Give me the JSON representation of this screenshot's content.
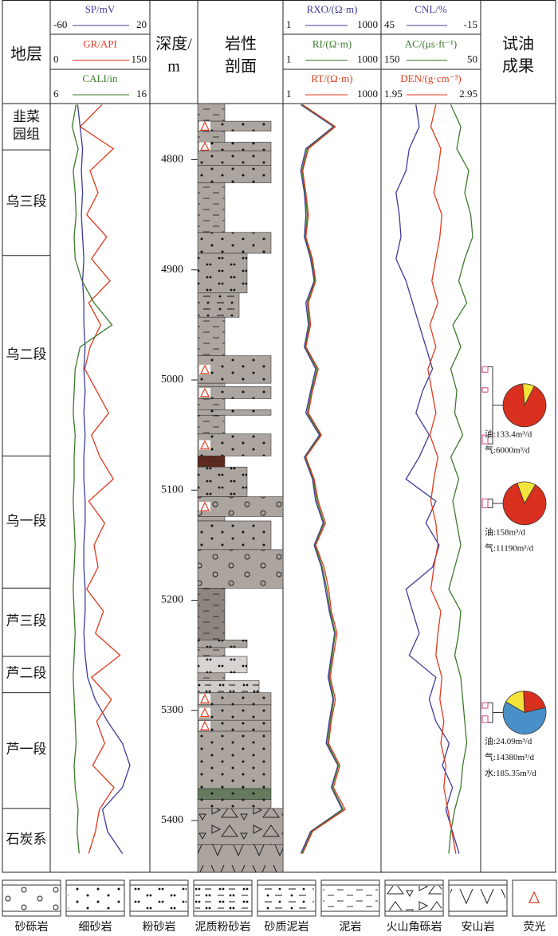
{
  "header": {
    "strata": "地层",
    "depth": [
      "深度/",
      "m"
    ],
    "lithology": [
      "岩性",
      "剖面"
    ],
    "test": [
      "试油",
      "成果"
    ]
  },
  "chart_data": {
    "type": "well-log",
    "ylim": [
      4749,
      5447
    ],
    "yticks": [
      4800,
      4900,
      5000,
      5100,
      5200,
      5300,
      5400
    ],
    "depths": [
      4750,
      4770,
      4790,
      4810,
      4830,
      4850,
      4870,
      4890,
      4910,
      4930,
      4950,
      4970,
      4990,
      5010,
      5030,
      5050,
      5070,
      5090,
      5110,
      5130,
      5150,
      5170,
      5190,
      5210,
      5230,
      5250,
      5270,
      5290,
      5310,
      5330,
      5350,
      5370,
      5390,
      5410,
      5430
    ],
    "tracks": [
      {
        "log": false,
        "curves": [
          {
            "name": "SP/mV",
            "color": "#3c3c9a",
            "xlim": [
              -60,
              20
            ],
            "values": [
              -38,
              -36,
              -34,
              -35,
              -34,
              -35,
              -34,
              -33,
              -34,
              -33,
              -33,
              -32,
              -33,
              -32,
              -33,
              -32,
              -33,
              -33,
              -32,
              -32,
              -33,
              -33,
              -32,
              -32,
              -33,
              -32,
              -30,
              -24,
              -14,
              -2,
              4,
              -2,
              -18,
              -14,
              -2
            ]
          },
          {
            "name": "GR/API",
            "color": "#e03a1e",
            "xlim": [
              0,
              150
            ],
            "values": [
              78,
              45,
              95,
              60,
              72,
              55,
              85,
              62,
              90,
              58,
              76,
              60,
              52,
              70,
              88,
              62,
              75,
              95,
              58,
              82,
              66,
              72,
              55,
              80,
              68,
              105,
              62,
              92,
              70,
              82,
              64,
              96,
              74,
              68,
              58
            ]
          },
          {
            "name": "CALI/in",
            "color": "#3b7a2a",
            "xlim": [
              6,
              16
            ],
            "values": [
              8.6,
              8.2,
              8.8,
              8.3,
              8.5,
              8.6,
              8.4,
              8.5,
              9.2,
              10.4,
              12.2,
              9.0,
              8.5,
              8.4,
              8.3,
              8.5,
              8.4,
              8.4,
              8.3,
              8.4,
              8.5,
              8.4,
              8.3,
              8.4,
              8.5,
              8.4,
              8.3,
              8.4,
              8.5,
              8.6,
              8.4,
              8.5,
              8.8,
              8.7,
              8.9
            ]
          }
        ]
      },
      {
        "log": true,
        "curves": [
          {
            "name": "RXO/(Ω·m)",
            "color": "#3c3c9a",
            "xlim": [
              1,
              1000
            ],
            "values": [
              3.5,
              35,
              5,
              3.5,
              4.5,
              5,
              4.5,
              7,
              9,
              5,
              6,
              4.5,
              10,
              7,
              5,
              13,
              4.5,
              8,
              10,
              17,
              9,
              15,
              20,
              26,
              38,
              30,
              24,
              34,
              26,
              21,
              48,
              30,
              65,
              7,
              3.5
            ]
          },
          {
            "name": "RI/(Ω·m)",
            "color": "#3b7a2a",
            "xlim": [
              1,
              1000
            ],
            "values": [
              3.8,
              38,
              5.5,
              3.8,
              4.8,
              5.5,
              4.8,
              7.5,
              9.5,
              5.5,
              6.5,
              4.8,
              11,
              7.5,
              5.5,
              14,
              4.8,
              8.5,
              11,
              18,
              9.5,
              16,
              22,
              28,
              40,
              32,
              26,
              36,
              28,
              23,
              50,
              32,
              70,
              7.5,
              3.8
            ]
          },
          {
            "name": "RT/(Ω·m)",
            "color": "#e03a1e",
            "xlim": [
              1,
              1000
            ],
            "values": [
              4,
              40,
              6,
              4,
              5,
              6,
              5,
              8,
              10,
              6,
              7,
              5,
              12,
              8,
              6,
              15,
              5,
              9,
              12,
              20,
              10,
              18,
              25,
              30,
              45,
              35,
              28,
              40,
              30,
              25,
              55,
              35,
              80,
              8,
              4
            ]
          }
        ]
      },
      {
        "log": false,
        "curves": [
          {
            "name": "CNL/%",
            "color": "#3c3c9a",
            "xlim": [
              45,
              -15
            ],
            "values": [
              24,
              22,
              28,
              30,
              36,
              34,
              33,
              36,
              30,
              26,
              22,
              18,
              14,
              20,
              24,
              16,
              22,
              30,
              12,
              18,
              10,
              14,
              30,
              26,
              22,
              28,
              12,
              16,
              12,
              4,
              8,
              2,
              6,
              2,
              -2
            ]
          },
          {
            "name": "AC/(μs·ft⁻¹)",
            "color": "#3b7a2a",
            "xlim": [
              150,
              50
            ],
            "values": [
              80,
              70,
              74,
              62,
              66,
              60,
              58,
              66,
              72,
              64,
              78,
              70,
              80,
              74,
              76,
              68,
              80,
              72,
              78,
              74,
              70,
              76,
              82,
              70,
              72,
              76,
              70,
              68,
              66,
              64,
              68,
              70,
              76,
              80,
              82
            ]
          },
          {
            "name": "DEN/(g·cm⁻³)",
            "color": "#e03a1e",
            "xlim": [
              1.95,
              2.95
            ],
            "values": [
              2.5,
              2.45,
              2.55,
              2.52,
              2.48,
              2.56,
              2.54,
              2.5,
              2.46,
              2.52,
              2.44,
              2.5,
              2.42,
              2.46,
              2.5,
              2.44,
              2.52,
              2.48,
              2.45,
              2.5,
              2.52,
              2.48,
              2.45,
              2.55,
              2.52,
              2.5,
              2.56,
              2.54,
              2.58,
              2.55,
              2.6,
              2.58,
              2.62,
              2.66,
              2.7
            ]
          }
        ]
      }
    ],
    "strata": [
      {
        "name": [
          "韭菜",
          "园组"
        ],
        "top": 4749,
        "bottom": 4791
      },
      {
        "name": [
          "乌三段"
        ],
        "top": 4791,
        "bottom": 4887
      },
      {
        "name": [
          "乌二段"
        ],
        "top": 4887,
        "bottom": 5069
      },
      {
        "name": [
          "乌一段"
        ],
        "top": 5069,
        "bottom": 5189
      },
      {
        "name": [
          "芦三段"
        ],
        "top": 5189,
        "bottom": 5251
      },
      {
        "name": [
          "芦二段"
        ],
        "top": 5251,
        "bottom": 5284
      },
      {
        "name": [
          "芦一段"
        ],
        "top": 5284,
        "bottom": 5389
      },
      {
        "name": [
          "石炭系"
        ],
        "top": 5389,
        "bottom": 5447
      }
    ],
    "legend": [
      "砂砾岩",
      "细砂岩",
      "粉砂岩",
      "泥质粉砂岩",
      "砂质泥岩",
      "泥岩",
      "火山角砾岩",
      "安山岩",
      "荧光"
    ],
    "lithology": [
      {
        "top": 4749,
        "bottom": 4765,
        "lith": "泥岩"
      },
      {
        "top": 4765,
        "bottom": 4774,
        "lith": "细砂岩",
        "fluorescence": true
      },
      {
        "top": 4774,
        "bottom": 4784,
        "lith": "泥岩"
      },
      {
        "top": 4784,
        "bottom": 4792,
        "lith": "细砂岩",
        "fluorescence": true
      },
      {
        "top": 4792,
        "bottom": 4805,
        "lith": "细砂岩"
      },
      {
        "top": 4805,
        "bottom": 4821,
        "lith": "细砂岩"
      },
      {
        "top": 4821,
        "bottom": 4866,
        "lith": "泥岩"
      },
      {
        "top": 4866,
        "bottom": 4885,
        "lith": "细砂岩"
      },
      {
        "top": 4885,
        "bottom": 4921,
        "lith": "粉砂岩"
      },
      {
        "top": 4921,
        "bottom": 4943,
        "lith": "砂质泥岩"
      },
      {
        "top": 4943,
        "bottom": 4978,
        "lith": "泥岩"
      },
      {
        "top": 4978,
        "bottom": 5003,
        "lith": "细砂岩",
        "fluorescence": true
      },
      {
        "top": 5003,
        "bottom": 5006,
        "lith": "泥岩"
      },
      {
        "top": 5006,
        "bottom": 5017,
        "lith": "细砂岩",
        "fluorescence": true
      },
      {
        "top": 5017,
        "bottom": 5027,
        "lith": "泥岩"
      },
      {
        "top": 5027,
        "bottom": 5032,
        "lith": "细砂岩"
      },
      {
        "top": 5032,
        "bottom": 5049,
        "lith": "泥岩"
      },
      {
        "top": 5049,
        "bottom": 5069,
        "lith": "细砂岩",
        "fluorescence": true
      },
      {
        "top": 5069,
        "bottom": 5079,
        "lith": "泥岩",
        "color": "#5e2a1e"
      },
      {
        "top": 5079,
        "bottom": 5106,
        "lith": "粉砂岩"
      },
      {
        "top": 5106,
        "bottom": 5124,
        "lith": "砂砾岩",
        "fluorescence": true
      },
      {
        "top": 5124,
        "bottom": 5128,
        "lith": "泥岩"
      },
      {
        "top": 5128,
        "bottom": 5154,
        "lith": "细砂岩"
      },
      {
        "top": 5154,
        "bottom": 5189,
        "lith": "砂砾岩"
      },
      {
        "top": 5189,
        "bottom": 5236,
        "lith": "泥岩",
        "color": "#8d8580"
      },
      {
        "top": 5236,
        "bottom": 5243,
        "lith": "粉砂岩"
      },
      {
        "top": 5243,
        "bottom": 5251,
        "lith": "泥岩"
      },
      {
        "top": 5251,
        "bottom": 5266,
        "lith": "粉砂岩",
        "color": "#d8d4d1"
      },
      {
        "top": 5266,
        "bottom": 5273,
        "lith": "泥岩"
      },
      {
        "top": 5273,
        "bottom": 5284,
        "lith": "泥质粉砂岩",
        "color": "#d0cbc7"
      },
      {
        "top": 5284,
        "bottom": 5295,
        "lith": "细砂岩",
        "fluorescence": true
      },
      {
        "top": 5295,
        "bottom": 5309,
        "lith": "细砂岩",
        "fluorescence": true
      },
      {
        "top": 5309,
        "bottom": 5319,
        "lith": "细砂岩",
        "fluorescence": true
      },
      {
        "top": 5319,
        "bottom": 5371,
        "lith": "细砂岩"
      },
      {
        "top": 5371,
        "bottom": 5381,
        "lith": "细砂岩",
        "color": "#667a5e"
      },
      {
        "top": 5381,
        "bottom": 5389,
        "lith": "细砂岩"
      },
      {
        "top": 5389,
        "bottom": 5422,
        "lith": "火山角砾岩"
      },
      {
        "top": 5422,
        "bottom": 5447,
        "lith": "安山岩"
      }
    ],
    "tests": [
      {
        "intervals": [
          [
            4988,
            4993
          ],
          [
            5007,
            5011
          ],
          [
            5050,
            5058
          ]
        ],
        "pie": [
          {
            "color": "#f2e43a",
            "value": 9
          },
          {
            "color": "#d9301f",
            "value": 91
          }
        ],
        "labels": [
          "油:133.4m³/d",
          "气:6000m³/d"
        ]
      },
      {
        "intervals": [
          [
            5108,
            5116
          ]
        ],
        "pie": [
          {
            "color": "#f2e43a",
            "value": 14
          },
          {
            "color": "#d9301f",
            "value": 86
          }
        ],
        "labels": [
          "油:158m³/d",
          "气:11190m³/d"
        ]
      },
      {
        "intervals": [
          [
            5293,
            5298
          ],
          [
            5305,
            5311
          ]
        ],
        "pie": [
          {
            "color": "#f2e43a",
            "value": 16
          },
          {
            "color": "#d9301f",
            "value": 22
          },
          {
            "color": "#4a90c8",
            "value": 62
          }
        ],
        "labels": [
          "油:24.09m³/d",
          "气:14380m³/d",
          "水:185.35m³/d"
        ]
      }
    ]
  }
}
